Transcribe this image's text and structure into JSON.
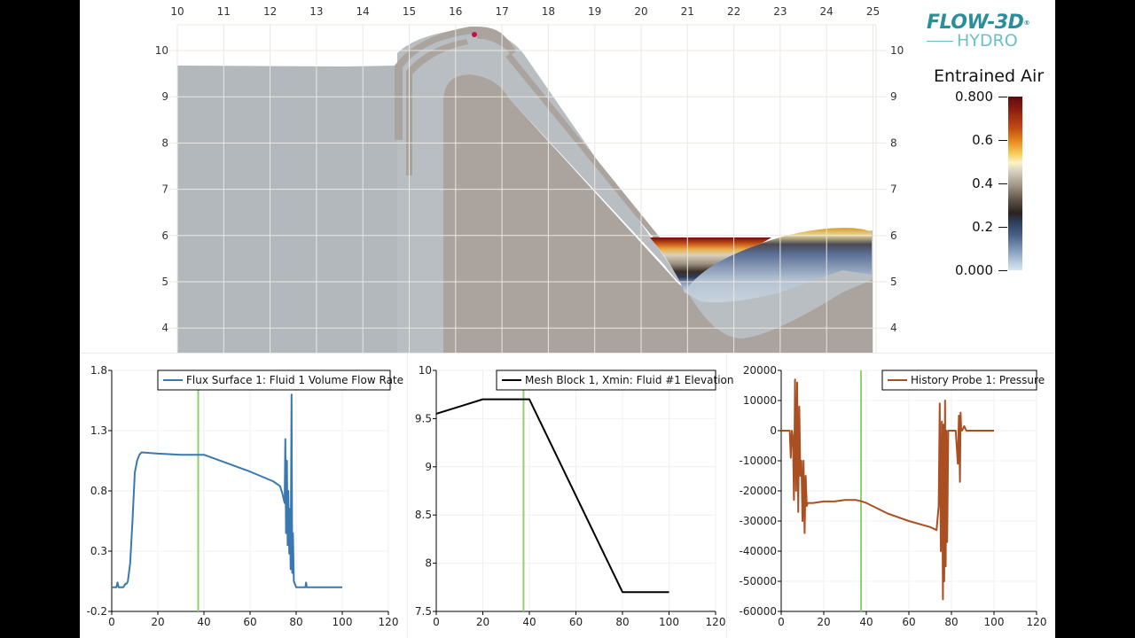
{
  "logo": {
    "brand": "FLOW-3D",
    "registered": "®",
    "product": "HYDRO"
  },
  "colorbar": {
    "title": "Entrained Air",
    "labels": [
      "0.800",
      "0.6",
      "0.4",
      "0.2",
      "0.000"
    ],
    "min": 0.0,
    "max": 0.8
  },
  "sim_view": {
    "x_ticks": [
      "10",
      "11",
      "12",
      "13",
      "14",
      "15",
      "16",
      "17",
      "18",
      "19",
      "20",
      "21",
      "22",
      "23",
      "24",
      "25"
    ],
    "y_ticks_left": [
      "10",
      "9",
      "8",
      "7",
      "6",
      "5",
      "4"
    ],
    "y_ticks_right": [
      "10",
      "9",
      "8",
      "7",
      "6",
      "5",
      "4"
    ],
    "colors": {
      "fluid": "#b3b8bc",
      "solid": "#aaa39e",
      "grid": "#e6e2dc",
      "probe": "#c0104a"
    }
  },
  "chart_data": [
    {
      "type": "line",
      "title": "",
      "legend": "Flux Surface 1: Fluid 1 Volume Flow Rate",
      "color": "#3a78b0",
      "xlabel": "",
      "ylabel": "",
      "xlim": [
        0,
        120
      ],
      "ylim": [
        -0.2,
        1.8
      ],
      "x_ticks": [
        "0",
        "20",
        "40",
        "60",
        "80",
        "100",
        "120"
      ],
      "y_ticks": [
        "1.8",
        "1.3",
        "0.8",
        "0.3",
        "-0.2"
      ],
      "y_tick_values": [
        1.8,
        1.3,
        0.8,
        0.3,
        -0.2
      ],
      "time_marker": 37.5,
      "x": [
        0,
        2,
        2.5,
        3,
        5,
        6,
        6.5,
        7,
        8,
        9,
        10,
        11,
        12,
        13,
        20,
        30,
        38,
        40,
        50,
        60,
        70,
        73,
        74,
        75,
        75.3,
        75.6,
        76,
        76.3,
        76.6,
        77,
        77.3,
        77.6,
        78,
        78.3,
        78.6,
        79,
        80,
        84,
        84.3,
        84.6,
        85,
        100
      ],
      "y": [
        0.0,
        0.0,
        0.04,
        0.0,
        0.0,
        0.03,
        0.03,
        0.05,
        0.2,
        0.55,
        0.95,
        1.05,
        1.1,
        1.12,
        1.11,
        1.1,
        1.1,
        1.1,
        1.03,
        0.96,
        0.88,
        0.84,
        0.78,
        0.7,
        1.23,
        0.45,
        1.05,
        0.35,
        0.8,
        0.28,
        0.65,
        0.15,
        1.6,
        0.12,
        0.45,
        0.05,
        0.0,
        0.0,
        0.04,
        0.0,
        0.0,
        0.0
      ]
    },
    {
      "type": "line",
      "title": "",
      "legend": "Mesh Block 1, Xmin: Fluid #1 Elevation",
      "color": "#000000",
      "xlabel": "",
      "ylabel": "",
      "xlim": [
        0,
        120
      ],
      "ylim": [
        7.5,
        10
      ],
      "x_ticks": [
        "0",
        "20",
        "40",
        "60",
        "80",
        "100",
        "120"
      ],
      "y_ticks": [
        "10",
        "9.5",
        "9",
        "8.5",
        "8",
        "7.5"
      ],
      "y_tick_values": [
        10,
        9.5,
        9,
        8.5,
        8,
        7.5
      ],
      "time_marker": 37.5,
      "x": [
        0,
        20,
        40,
        80,
        100
      ],
      "y": [
        9.55,
        9.7,
        9.7,
        7.7,
        7.7
      ]
    },
    {
      "type": "line",
      "title": "",
      "legend": "History Probe 1: Pressure",
      "color": "#a94f22",
      "xlabel": "",
      "ylabel": "",
      "xlim": [
        0,
        120
      ],
      "ylim": [
        -60000,
        20000
      ],
      "x_ticks": [
        "0",
        "20",
        "40",
        "60",
        "80",
        "100",
        "120"
      ],
      "y_ticks": [
        "20000",
        "10000",
        "0",
        "-10000",
        "-20000",
        "-30000",
        "-40000",
        "-50000",
        "-60000"
      ],
      "y_tick_values": [
        20000,
        10000,
        0,
        -10000,
        -20000,
        -30000,
        -40000,
        -50000,
        -60000
      ],
      "time_marker": 37.5,
      "x": [
        0,
        4,
        4.5,
        5,
        5.5,
        6,
        6.5,
        7,
        7.5,
        8,
        8.5,
        9,
        9.5,
        10,
        10.5,
        11,
        11.5,
        12,
        12.5,
        13,
        15,
        20,
        25,
        30,
        35,
        38,
        40,
        50,
        60,
        70,
        73,
        74,
        74.5,
        75,
        75.5,
        76,
        76.3,
        76.6,
        77,
        77.3,
        77.6,
        78,
        78.5,
        79,
        80,
        82,
        83,
        83.5,
        84,
        84.3,
        84.6,
        85,
        86,
        87,
        100
      ],
      "y": [
        0,
        0,
        -9000,
        0,
        -2000,
        -23000,
        17000,
        -20000,
        16000,
        -27000,
        8000,
        -15000,
        -10000,
        -30000,
        -10000,
        -34000,
        -15000,
        -25000,
        -24000,
        -24000,
        -24000,
        -23500,
        -23500,
        -23000,
        -23000,
        -23500,
        -24000,
        -27500,
        -30000,
        -32000,
        -33000,
        -25000,
        9000,
        -40000,
        3000,
        -56000,
        2000,
        -50000,
        10000,
        -45000,
        0,
        -37000,
        0,
        0,
        0,
        0,
        -11000,
        5000,
        -17000,
        6000,
        0,
        0,
        1500,
        0,
        0
      ]
    }
  ]
}
